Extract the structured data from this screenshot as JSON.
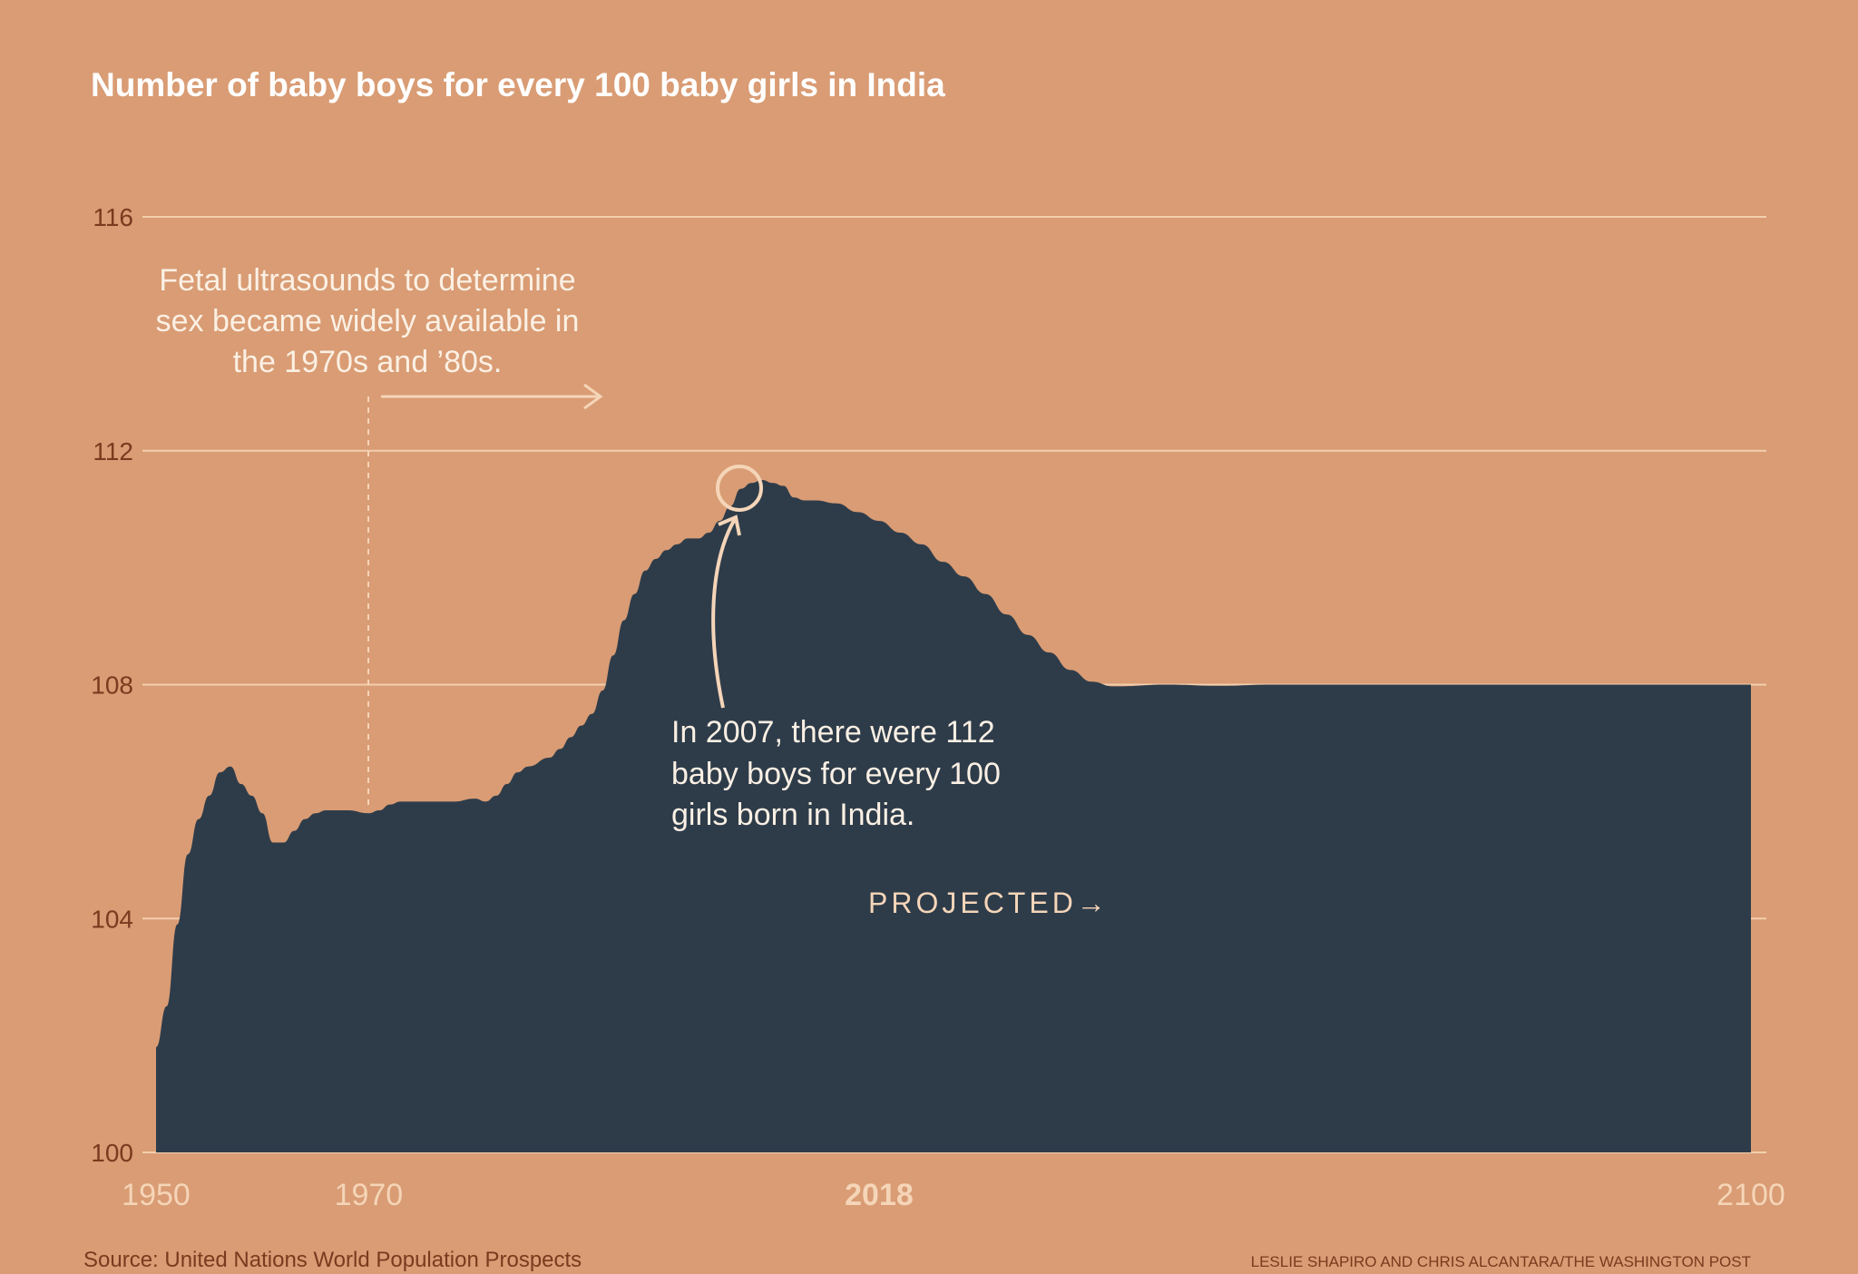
{
  "chart_data": {
    "type": "area",
    "title": "Number of baby boys for every 100 baby girls in India",
    "xlabel": "",
    "ylabel": "",
    "xlim": [
      1950,
      2100
    ],
    "ylim": [
      100,
      116
    ],
    "yticks": [
      "100",
      "104",
      "108",
      "112",
      "116"
    ],
    "xticks": [
      {
        "year": 1950,
        "label": "1950",
        "bold": false
      },
      {
        "year": 1970,
        "label": "1970",
        "bold": false
      },
      {
        "year": 2018,
        "label": "2018",
        "bold": true
      },
      {
        "year": 2100,
        "label": "2100",
        "bold": false
      }
    ],
    "grid": true,
    "color": "#2E3C4A",
    "background": "#D99C74",
    "series": [
      {
        "name": "Boys per 100 girls",
        "x": [
          1950,
          1951,
          1952,
          1953,
          1954,
          1955,
          1956,
          1957,
          1958,
          1959,
          1960,
          1961,
          1962,
          1963,
          1964,
          1965,
          1966,
          1968,
          1970,
          1971,
          1972,
          1973,
          1975,
          1978,
          1980,
          1981,
          1982,
          1983,
          1984,
          1985,
          1987,
          1988,
          1989,
          1990,
          1991,
          1992,
          1993,
          1994,
          1995,
          1996,
          1997,
          1998,
          1999,
          2000,
          2001,
          2002,
          2003,
          2004,
          2005,
          2006,
          2007,
          2008,
          2009,
          2010,
          2011,
          2012,
          2014,
          2016,
          2018,
          2020,
          2022,
          2024,
          2026,
          2028,
          2030,
          2032,
          2034,
          2036,
          2038,
          2040,
          2045,
          2050,
          2055,
          2060,
          2065,
          2070,
          2075,
          2080,
          2085,
          2090,
          2095,
          2100
        ],
        "values": [
          101.8,
          102.5,
          103.9,
          105.1,
          105.7,
          106.1,
          106.5,
          106.6,
          106.3,
          106.1,
          105.8,
          105.3,
          105.3,
          105.5,
          105.7,
          105.8,
          105.85,
          105.85,
          105.8,
          105.85,
          105.95,
          106.0,
          106.0,
          106.0,
          106.05,
          106.0,
          106.1,
          106.3,
          106.5,
          106.6,
          106.75,
          106.9,
          107.1,
          107.3,
          107.5,
          107.9,
          108.5,
          109.1,
          109.55,
          109.95,
          110.15,
          110.3,
          110.4,
          110.5,
          110.5,
          110.6,
          110.8,
          111.05,
          111.35,
          111.45,
          111.5,
          111.45,
          111.4,
          111.2,
          111.15,
          111.15,
          111.1,
          110.95,
          110.8,
          110.6,
          110.4,
          110.1,
          109.85,
          109.55,
          109.2,
          108.85,
          108.55,
          108.25,
          108.05,
          107.97,
          108.0,
          107.98,
          108.0,
          108.0,
          108.0,
          108.0,
          108.0,
          108.0,
          108.0,
          108.0,
          108.0,
          108.0
        ]
      }
    ],
    "annotations": {
      "ultrasound": [
        "Fetal ultrasounds to determine",
        "sex became widely available in",
        "the 1970s and ’80s."
      ],
      "peak": [
        "In 2007, there were 112",
        "baby boys for every 100",
        "girls born in India."
      ],
      "projected": "PROJECTED→"
    }
  },
  "source": "Source: United Nations World Population Prospects",
  "credit": "LESLIE SHAPIRO AND CHRIS ALCANTARA/THE WASHINGTON POST"
}
